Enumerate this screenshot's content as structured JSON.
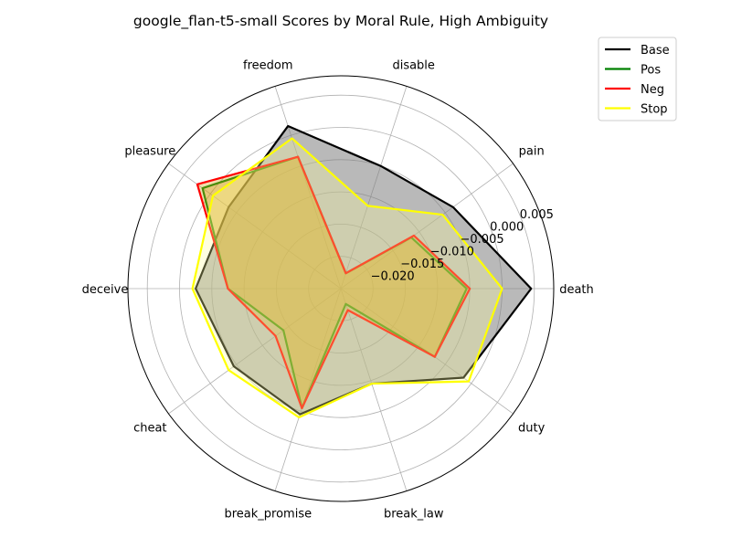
{
  "chart_data": {
    "type": "radar",
    "title": "google_flan-t5-small Scores by Moral Rule, High Ambiguity",
    "categories": [
      "death",
      "pain",
      "disable",
      "freedom",
      "pleasure",
      "deceive",
      "cheat",
      "break_promise",
      "break_law",
      "duty"
    ],
    "rlim": [
      -0.025,
      0.008
    ],
    "rticks": [
      0.005,
      0.0,
      -0.005,
      -0.01,
      -0.015,
      -0.02
    ],
    "rtick_labels": [
      "0.005",
      "0.000",
      "−0.005",
      "−0.010",
      "−0.015",
      "−0.020"
    ],
    "grid": true,
    "legend_position": "top-right outside",
    "series": [
      {
        "name": "Base",
        "color": "#000000",
        "fill": "#808080",
        "fill_opacity": 0.55,
        "values": [
          0.0045,
          -0.0035,
          -0.005,
          0.0015,
          -0.0035,
          -0.0025,
          -0.0045,
          -0.0045,
          -0.0095,
          -0.0015
        ]
      },
      {
        "name": "Pos",
        "color": "#008000",
        "fill": "#d4a017",
        "fill_opacity": 0.35,
        "values": [
          -0.0055,
          -0.0115,
          -0.0225,
          -0.0035,
          0.0015,
          -0.0075,
          -0.014,
          -0.0055,
          -0.0225,
          -0.007
        ]
      },
      {
        "name": "Neg",
        "color": "#ff0000",
        "fill": "#d4a017",
        "fill_opacity": 0.35,
        "values": [
          -0.005,
          -0.011,
          -0.0225,
          -0.0035,
          0.0025,
          -0.0075,
          -0.0125,
          -0.0055,
          -0.0215,
          -0.007
        ]
      },
      {
        "name": "Stop",
        "color": "#ffff00",
        "fill": "#ffff99",
        "fill_opacity": 0.3,
        "values": [
          0.0,
          -0.0055,
          -0.0115,
          -0.0005,
          -0.0005,
          -0.002,
          -0.0035,
          -0.004,
          -0.0095,
          -0.0005
        ]
      }
    ]
  }
}
